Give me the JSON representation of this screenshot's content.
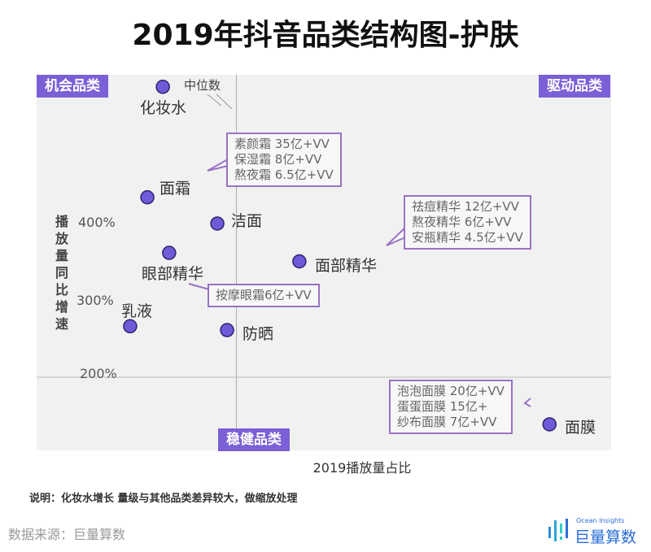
{
  "chart_data": {
    "type": "scatter",
    "title": "2019年抖音品类结构图-护肤",
    "xlabel": "2019播放量占比",
    "ylabel": "播放量同比增速",
    "yticks": [
      "400%",
      "300%",
      "200%"
    ],
    "ytick_values": [
      400,
      300,
      200
    ],
    "median_label": "中位数",
    "quadrants": {
      "top_left": "机会品类",
      "top_right": "驱动品类",
      "bottom": "稳健品类"
    },
    "points": [
      {
        "name": "化妆水",
        "x": 2.2,
        "y": 576
      },
      {
        "name": "面霜",
        "x": 1.93,
        "y": 433
      },
      {
        "name": "洁面",
        "x": 3.15,
        "y": 399
      },
      {
        "name": "眼部精华",
        "x": 2.31,
        "y": 361
      },
      {
        "name": "面部精华",
        "x": 4.58,
        "y": 350
      },
      {
        "name": "乳液",
        "x": 1.63,
        "y": 266
      },
      {
        "name": "防晒",
        "x": 3.32,
        "y": 261
      },
      {
        "name": "面膜",
        "x": 8.94,
        "y": 139
      }
    ],
    "median_x": 3.1,
    "callouts": {
      "cream": [
        "素颜霜 35亿+VV",
        "保湿霜 8亿+VV",
        "熬夜霜 6.5亿+VV"
      ],
      "essence": [
        "祛痘精华 12亿+VV",
        "熬夜精华 6亿+VV",
        "安瓶精华 4.5亿+VV"
      ],
      "eye": [
        "按摩眼霜6亿+VV"
      ],
      "mask": [
        "泡泡面膜 20亿+VV",
        "蛋蛋面膜 15亿+",
        "纱布面膜 7亿+VV"
      ]
    },
    "point_color": "#6f5bd8"
  },
  "note": "说明：化妆水增长 量级与其他品类差异较大，做缩放处理",
  "source": "数据来源：巨量算数",
  "logo": {
    "en": "Ocean Insights",
    "cn": "巨量算数"
  }
}
